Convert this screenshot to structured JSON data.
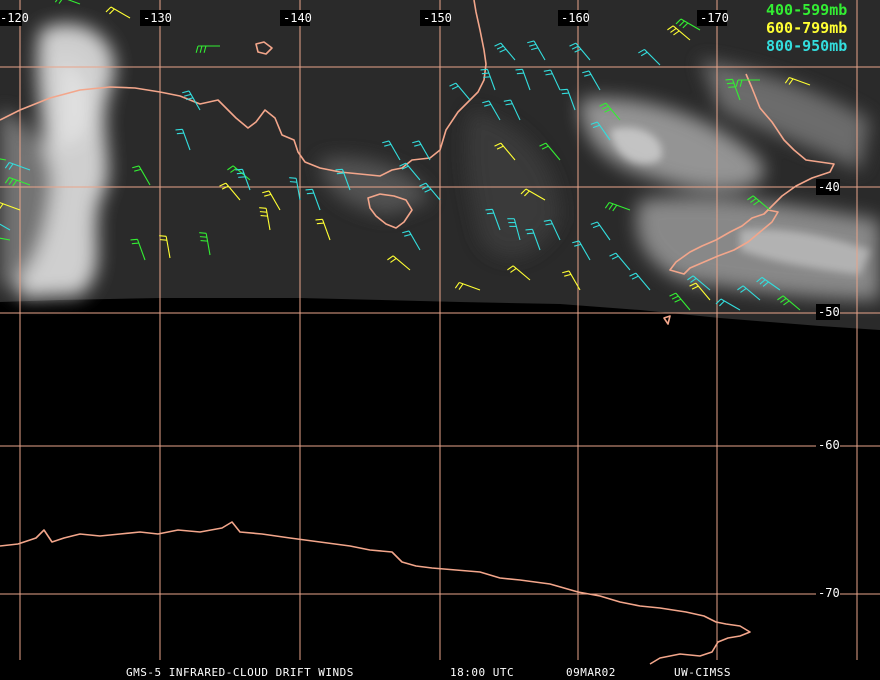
{
  "longitude_labels": [
    "-120",
    "-130",
    "-140",
    "-150",
    "-160",
    "-170"
  ],
  "latitude_labels": [
    "-40",
    "-50",
    "-60",
    "-70"
  ],
  "legend": [
    {
      "label": "400-599mb",
      "color": "#33ee33"
    },
    {
      "label": "600-799mb",
      "color": "#ffff33"
    },
    {
      "label": "800-950mb",
      "color": "#33dddd"
    }
  ],
  "footer": {
    "product": "GMS-5 INFRARED-CLOUD DRIFT WINDS",
    "time": "18:00 UTC",
    "date": "09MAR02",
    "source": "UW-CIMSS"
  },
  "colors": {
    "grid": "#e8a48a",
    "coastline": "#f3a68b",
    "background": "#000000"
  }
}
